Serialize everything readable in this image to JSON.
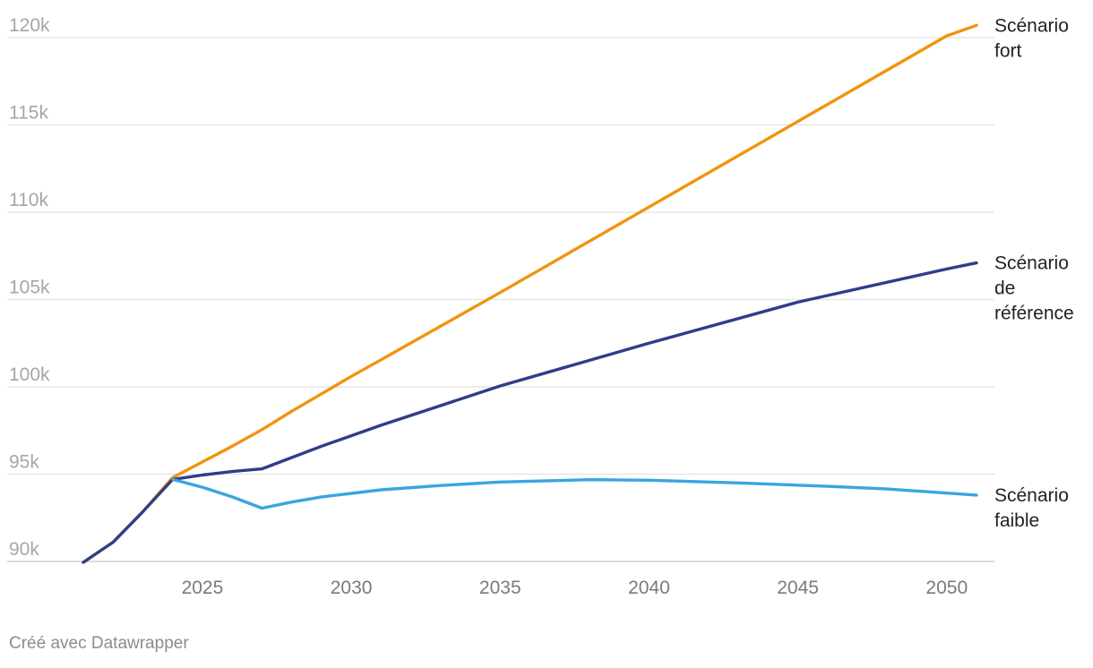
{
  "chart_data": {
    "type": "line",
    "title": "",
    "xlabel": "",
    "ylabel": "",
    "xlim": [
      2021,
      2051
    ],
    "ylim": [
      90000,
      120000
    ],
    "y_ticks": [
      90000,
      95000,
      100000,
      105000,
      110000,
      115000,
      120000
    ],
    "y_tick_labels": [
      "90k",
      "95k",
      "100k",
      "105k",
      "110k",
      "115k",
      "120k"
    ],
    "x_ticks": [
      2025,
      2030,
      2035,
      2040,
      2045,
      2050
    ],
    "x_tick_labels": [
      "2025",
      "2030",
      "2035",
      "2040",
      "2045",
      "2050"
    ],
    "grid": "horizontal",
    "legend": "direct labels at line ends (right)",
    "series": [
      {
        "name": "Scénario fort",
        "label_lines": [
          "Scénario",
          "fort"
        ],
        "color": "#f0940e",
        "x": [
          2021,
          2022,
          2023,
          2024,
          2025,
          2026,
          2027,
          2028,
          2029,
          2030,
          2031,
          2035,
          2040,
          2045,
          2050,
          2051
        ],
        "y": [
          89950,
          91100,
          92850,
          94800,
          95700,
          96600,
          97550,
          98600,
          99600,
          100600,
          101550,
          105400,
          110300,
          115200,
          120100,
          120700
        ]
      },
      {
        "name": "Scénario de référence",
        "label_lines": [
          "Scénario",
          "de",
          "référence"
        ],
        "color": "#2f3d8a",
        "x": [
          2021,
          2022,
          2023,
          2024,
          2025,
          2026,
          2027,
          2028,
          2029,
          2030,
          2031,
          2035,
          2040,
          2045,
          2050,
          2051
        ],
        "y": [
          89950,
          91100,
          92850,
          94700,
          94950,
          95150,
          95300,
          95950,
          96600,
          97200,
          97800,
          100050,
          102500,
          104850,
          106750,
          107100
        ]
      },
      {
        "name": "Scénario faible",
        "label_lines": [
          "Scénario",
          "faible"
        ],
        "color": "#3aa5de",
        "x": [
          2024,
          2025,
          2026,
          2027,
          2028,
          2029,
          2030,
          2031,
          2033,
          2035,
          2038,
          2040,
          2043,
          2046,
          2048,
          2051
        ],
        "y": [
          94700,
          94250,
          93700,
          93050,
          93400,
          93700,
          93900,
          94100,
          94350,
          94550,
          94680,
          94650,
          94500,
          94300,
          94150,
          93800
        ]
      }
    ]
  },
  "footer": {
    "credit": "Créé avec Datawrapper"
  }
}
